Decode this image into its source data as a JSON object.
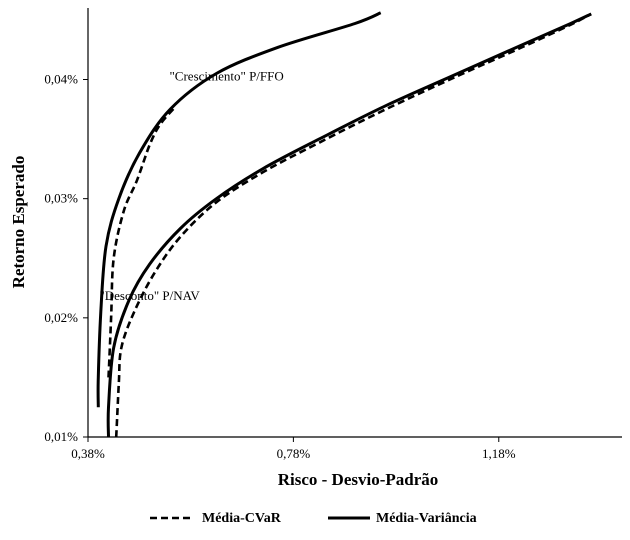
{
  "chart_data": {
    "type": "line",
    "title": "",
    "xlabel": "Risco - Desvio-Padrão",
    "ylabel": "Retorno Esperado",
    "xlim": [
      0.38,
      1.42
    ],
    "ylim": [
      0.01,
      0.046
    ],
    "x_ticks": [
      {
        "value": 0.38,
        "label": "0,38%"
      },
      {
        "value": 0.78,
        "label": "0,78%"
      },
      {
        "value": 1.18,
        "label": "1,18%"
      }
    ],
    "y_ticks": [
      {
        "value": 0.01,
        "label": "0,01%"
      },
      {
        "value": 0.02,
        "label": "0,02%"
      },
      {
        "value": 0.03,
        "label": "0,03%"
      },
      {
        "value": 0.04,
        "label": "0,04%"
      }
    ],
    "grid": false,
    "legend": "bottom",
    "annotations": [
      {
        "text": "\"Crescimento\" P/FFO",
        "x": 0.65,
        "y": 0.0399
      },
      {
        "text": "\"Desconto\" P/NAV",
        "x": 0.5,
        "y": 0.0215
      }
    ],
    "series": [
      {
        "name": "Média-Variância",
        "group": "\"Crescimento\" P/FFO",
        "style": "solid",
        "points": [
          [
            0.4,
            0.0125
          ],
          [
            0.4,
            0.015
          ],
          [
            0.405,
            0.0205
          ],
          [
            0.415,
            0.026
          ],
          [
            0.44,
            0.03
          ],
          [
            0.48,
            0.0338
          ],
          [
            0.54,
            0.0375
          ],
          [
            0.63,
            0.0405
          ],
          [
            0.75,
            0.0427
          ],
          [
            0.9,
            0.0447
          ],
          [
            0.95,
            0.0456
          ]
        ]
      },
      {
        "name": "Média-CVaR",
        "group": "\"Crescimento\" P/FFO",
        "style": "dashed",
        "points": [
          [
            0.42,
            0.015
          ],
          [
            0.425,
            0.02
          ],
          [
            0.43,
            0.025
          ],
          [
            0.45,
            0.029
          ],
          [
            0.475,
            0.0315
          ],
          [
            0.5,
            0.0345
          ],
          [
            0.52,
            0.0362
          ],
          [
            0.55,
            0.0377
          ]
        ]
      },
      {
        "name": "Média-Variância",
        "group": "\"Desconto\" P/NAV",
        "style": "solid",
        "points": [
          [
            0.42,
            0.01
          ],
          [
            0.42,
            0.0125
          ],
          [
            0.43,
            0.0175
          ],
          [
            0.46,
            0.0215
          ],
          [
            0.5,
            0.0245
          ],
          [
            0.56,
            0.0275
          ],
          [
            0.63,
            0.03
          ],
          [
            0.72,
            0.0325
          ],
          [
            0.83,
            0.035
          ],
          [
            0.96,
            0.0378
          ],
          [
            1.1,
            0.0405
          ],
          [
            1.22,
            0.0428
          ],
          [
            1.32,
            0.0447
          ],
          [
            1.36,
            0.0455
          ]
        ]
      },
      {
        "name": "Média-CVaR",
        "group": "\"Desconto\" P/NAV",
        "style": "dashed",
        "points": [
          [
            0.435,
            0.01
          ],
          [
            0.44,
            0.0145
          ],
          [
            0.445,
            0.0175
          ],
          [
            0.47,
            0.0205
          ],
          [
            0.51,
            0.0238
          ],
          [
            0.56,
            0.0268
          ],
          [
            0.63,
            0.0297
          ],
          [
            0.72,
            0.0322
          ],
          [
            0.83,
            0.0347
          ],
          [
            0.96,
            0.0375
          ],
          [
            1.1,
            0.0403
          ],
          [
            1.22,
            0.0426
          ],
          [
            1.32,
            0.0446
          ],
          [
            1.36,
            0.0455
          ]
        ]
      }
    ],
    "legend_entries": [
      {
        "label": "Média-CVaR",
        "style": "dashed"
      },
      {
        "label": "Média-Variância",
        "style": "solid"
      }
    ]
  }
}
